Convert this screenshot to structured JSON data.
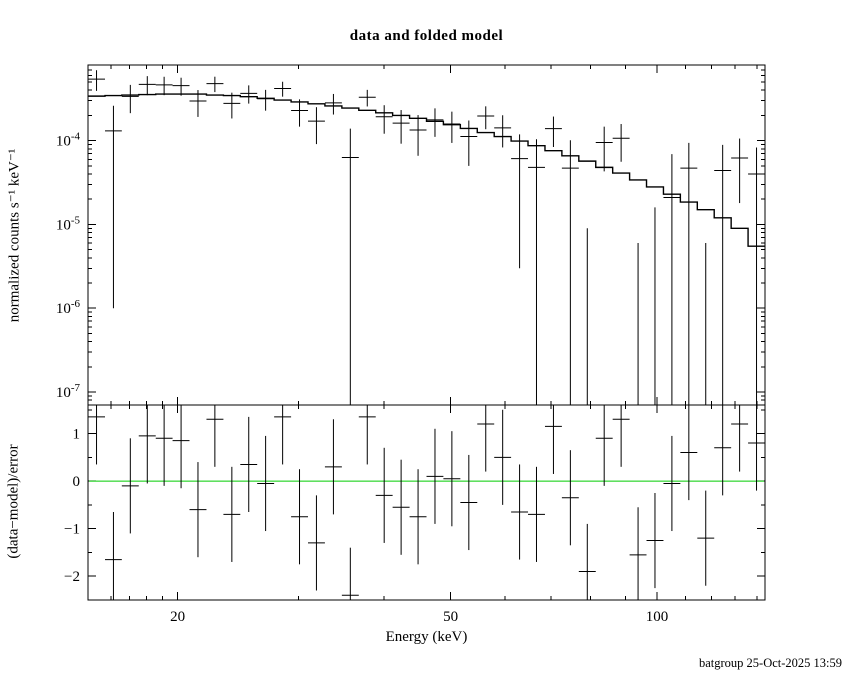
{
  "figure": {
    "footer": "batgroup 25-Oct-2025 13:59"
  },
  "chart_data": {
    "type": "scatter",
    "title": "data and folded model",
    "xlabel": "Energy (keV)",
    "xscale": "log",
    "xlim": [
      14.8,
      143.71
    ],
    "x_major_ticks": [
      20,
      50,
      100
    ],
    "x_minor_ticks": [
      16,
      17,
      18,
      19,
      30,
      40,
      60,
      70,
      80,
      90,
      110,
      120,
      130,
      140
    ],
    "legend": "none",
    "grid": false,
    "colors": {
      "data": "#000000",
      "model": "#000000",
      "zero_line": "#00cc00",
      "frame": "#000000",
      "background": "#ffffff"
    },
    "panels": [
      {
        "name": "spectrum",
        "ylabel": "normalized counts s⁻¹ keV⁻¹",
        "yscale": "log",
        "ylim": [
          7e-08,
          0.0008
        ],
        "y_major_ticks": [
          0.0001,
          1e-05,
          1e-06,
          1e-07
        ]
      },
      {
        "name": "residuals",
        "ylabel": "(data−model)/error",
        "yscale": "linear",
        "ylim": [
          -2.5,
          1.6
        ],
        "y_major_ticks": [
          -2,
          -1,
          0,
          1
        ],
        "y_minor_ticks": [
          -2.5,
          -1.5,
          -0.5,
          0.5,
          1.5
        ],
        "zero_line": 0,
        "resid_err": 1
      }
    ],
    "bin_edges": [
      14.8,
      15.67,
      16.58,
      17.55,
      18.58,
      19.66,
      20.81,
      22.03,
      23.32,
      24.68,
      26.12,
      27.65,
      29.27,
      30.98,
      32.79,
      34.71,
      36.74,
      38.89,
      41.16,
      43.57,
      46.12,
      48.81,
      51.67,
      54.69,
      57.89,
      61.27,
      64.85,
      68.65,
      72.66,
      76.91,
      81.41,
      86.17,
      91.21,
      96.54,
      102.19,
      108.16,
      114.49,
      121.18,
      128.27,
      135.77,
      143.71
    ],
    "model_values": [
      0.00034,
      0.000345,
      0.00035,
      0.000355,
      0.00036,
      0.00036,
      0.00036,
      0.00035,
      0.000345,
      0.000335,
      0.00032,
      0.000305,
      0.00029,
      0.000275,
      0.00026,
      0.000245,
      0.00023,
      0.000215,
      0.0002,
      0.000185,
      0.00017,
      0.000155,
      0.00014,
      0.000125,
      0.000112,
      9.9e-05,
      8.7e-05,
      7.6e-05,
      6.6e-05,
      5.7e-05,
      4.8e-05,
      4.1e-05,
      3.4e-05,
      2.8e-05,
      2.3e-05,
      1.85e-05,
      1.5e-05,
      1.2e-05,
      9e-06,
      5.5e-06
    ],
    "points": [
      {
        "e": 15.23,
        "rate": 0.000543,
        "err": 0.00015,
        "resid": 1.35
      },
      {
        "e": 16.12,
        "rate": 0.000131,
        "err": 0.00013,
        "resid": -1.65
      },
      {
        "e": 17.06,
        "rate": 0.000338,
        "err": 0.000125,
        "resid": -0.1
      },
      {
        "e": 18.06,
        "rate": 0.000469,
        "err": 0.00012,
        "resid": 0.95
      },
      {
        "e": 19.11,
        "rate": 0.000464,
        "err": 0.000115,
        "resid": 0.9
      },
      {
        "e": 20.23,
        "rate": 0.000454,
        "err": 0.00011,
        "resid": 0.85
      },
      {
        "e": 21.41,
        "rate": 0.000297,
        "err": 0.000105,
        "resid": -0.6
      },
      {
        "e": 22.66,
        "rate": 0.00048,
        "err": 0.0001,
        "resid": 1.3
      },
      {
        "e": 23.99,
        "rate": 0.000279,
        "err": 9.5e-05,
        "resid": -0.7
      },
      {
        "e": 25.39,
        "rate": 0.000367,
        "err": 9e-05,
        "resid": 0.35
      },
      {
        "e": 26.87,
        "rate": 0.000316,
        "err": 8.8e-05,
        "resid": -0.05
      },
      {
        "e": 28.45,
        "rate": 0.00042,
        "err": 8.5e-05,
        "resid": 1.35
      },
      {
        "e": 30.11,
        "rate": 0.000229,
        "err": 8.2e-05,
        "resid": -0.75
      },
      {
        "e": 31.87,
        "rate": 0.000171,
        "err": 8e-05,
        "resid": -1.3
      },
      {
        "e": 33.74,
        "rate": 0.000283,
        "err": 7.8e-05,
        "resid": 0.3
      },
      {
        "e": 35.71,
        "rate": 6.3e-05,
        "err": 7.6e-05,
        "resid": -2.4
      },
      {
        "e": 37.8,
        "rate": 0.00033,
        "err": 7.4e-05,
        "resid": 1.35
      },
      {
        "e": 40.01,
        "rate": 0.000193,
        "err": 7.2e-05,
        "resid": -0.3
      },
      {
        "e": 42.35,
        "rate": 0.000162,
        "err": 7e-05,
        "resid": -0.55
      },
      {
        "e": 44.83,
        "rate": 0.000134,
        "err": 6.8e-05,
        "resid": -0.75
      },
      {
        "e": 47.45,
        "rate": 0.000177,
        "err": 6.6e-05,
        "resid": 0.1
      },
      {
        "e": 50.22,
        "rate": 0.000158,
        "err": 6.4e-05,
        "resid": 0.05
      },
      {
        "e": 53.16,
        "rate": 0.000112,
        "err": 6.2e-05,
        "resid": -0.45
      },
      {
        "e": 56.27,
        "rate": 0.000197,
        "err": 6e-05,
        "resid": 1.2
      },
      {
        "e": 59.56,
        "rate": 0.000142,
        "err": 5.9e-05,
        "resid": 0.5
      },
      {
        "e": 63.04,
        "rate": 6.1e-05,
        "err": 5.8e-05,
        "resid": -0.65
      },
      {
        "e": 66.72,
        "rate": 4.8e-05,
        "err": 5.6e-05,
        "resid": -0.7
      },
      {
        "e": 70.63,
        "rate": 0.000139,
        "err": 5.5e-05,
        "resid": 1.15
      },
      {
        "e": 74.76,
        "rate": 4.7e-05,
        "err": 5.4e-05,
        "resid": -0.35
      },
      {
        "e": 79.13,
        "rate": -4.4e-05,
        "err": 5.3e-05,
        "resid": -1.9
      },
      {
        "e": 83.75,
        "rate": 9.5e-05,
        "err": 5.2e-05,
        "resid": 0.9
      },
      {
        "e": 88.65,
        "rate": 0.000107,
        "err": 5.1e-05,
        "resid": 1.3
      },
      {
        "e": 93.84,
        "rate": -4.4e-05,
        "err": 5e-05,
        "resid": -1.55
      },
      {
        "e": 99.32,
        "rate": -3.3e-05,
        "err": 4.9e-05,
        "resid": -1.25
      },
      {
        "e": 105.13,
        "rate": 2.1e-05,
        "err": 4.8e-05,
        "resid": -0.05
      },
      {
        "e": 111.28,
        "rate": 4.7e-05,
        "err": 4.7e-05,
        "resid": 0.6
      },
      {
        "e": 117.78,
        "rate": -4e-05,
        "err": 4.6e-05,
        "resid": -1.2
      },
      {
        "e": 124.67,
        "rate": 4.4e-05,
        "err": 4.5e-05,
        "resid": 0.7
      },
      {
        "e": 131.97,
        "rate": 6.2e-05,
        "err": 4.4e-05,
        "resid": 1.2
      },
      {
        "e": 139.68,
        "rate": 4e-05,
        "err": 4.3e-05,
        "resid": 0.8
      }
    ]
  }
}
